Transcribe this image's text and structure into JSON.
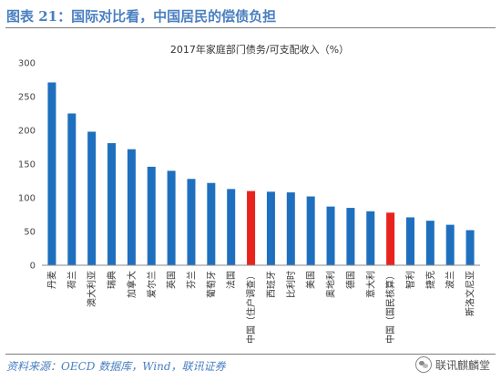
{
  "figure_title": "图表 21：国际对比看，中国居民的偿债负担",
  "source_note": "资料来源：OECD 数据库，Wind，联讯证券",
  "watermark": "联讯麒麟堂",
  "colors": {
    "default_bar": "#1f6fbf",
    "highlight_bar": "#e8221c",
    "title": "#4a7fc0"
  },
  "chart_data": {
    "type": "bar",
    "title": "2017年家庭部门债务/可支配收入（%）",
    "xlabel": "",
    "ylabel": "",
    "ylim": [
      0,
      300
    ],
    "yticks": [
      0,
      50,
      100,
      150,
      200,
      250,
      300
    ],
    "grid": false,
    "legend": "none",
    "categories": [
      "丹麦",
      "荷兰",
      "澳大利亚",
      "瑞典",
      "加拿大",
      "爱尔兰",
      "英国",
      "芬兰",
      "葡萄牙",
      "法国",
      "中国（住户调查）",
      "西班牙",
      "比利时",
      "美国",
      "奥地利",
      "德国",
      "意大利",
      "中国（国民核算）",
      "智利",
      "捷克",
      "波兰",
      "斯洛文尼亚"
    ],
    "values": [
      271,
      225,
      198,
      181,
      172,
      146,
      140,
      128,
      122,
      113,
      110,
      109,
      108,
      102,
      87,
      85,
      80,
      78,
      71,
      66,
      60,
      52
    ],
    "highlight": [
      "中国（住户调查）",
      "中国（国民核算）"
    ]
  }
}
